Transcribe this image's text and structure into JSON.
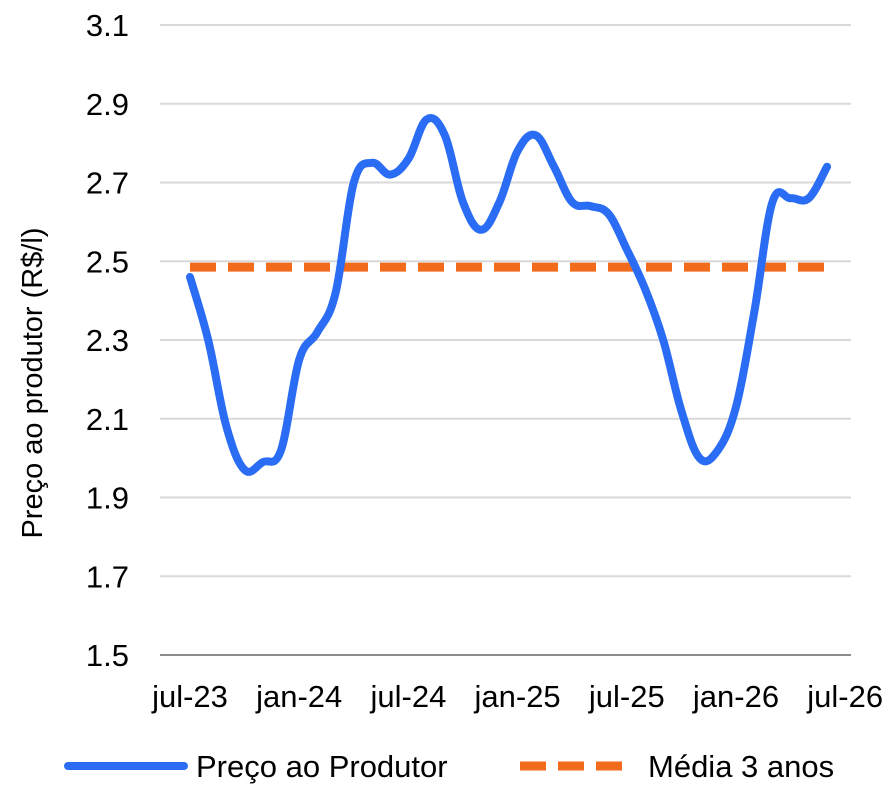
{
  "chart_data": {
    "type": "line",
    "title": "",
    "xlabel": "",
    "ylabel": "Preço ao produtor (R$/l)",
    "ylim": [
      1.5,
      3.1
    ],
    "yticks": [
      "1.5",
      "1.7",
      "1.9",
      "2.1",
      "2.3",
      "2.5",
      "2.7",
      "2.9",
      "3.1"
    ],
    "xtick_labels": [
      "jul-23",
      "jan-24",
      "jul-24",
      "jan-25",
      "jul-25",
      "jan-26",
      "jul-26"
    ],
    "grid": true,
    "legend_position": "bottom",
    "x": [
      "jul-23",
      "ago-23",
      "set-23",
      "out-23",
      "nov-23",
      "dez-23",
      "jan-24",
      "fev-24",
      "mar-24",
      "abr-24",
      "mai-24",
      "jun-24",
      "jul-24",
      "ago-24",
      "set-24",
      "out-24",
      "nov-24",
      "dez-24",
      "jan-25",
      "fev-25",
      "mar-25",
      "abr-25",
      "mai-25",
      "jun-25",
      "jul-25",
      "ago-25",
      "set-25",
      "out-25",
      "nov-25",
      "dez-25",
      "jan-26",
      "fev-26",
      "mar-26",
      "abr-26",
      "mai-26",
      "jun-26"
    ],
    "series": [
      {
        "name": "Preço ao Produtor",
        "color": "#2b6cf4",
        "style": "solid",
        "values": [
          2.46,
          2.3,
          2.08,
          1.97,
          1.99,
          2.02,
          2.25,
          2.32,
          2.42,
          2.7,
          2.75,
          2.72,
          2.76,
          2.86,
          2.82,
          2.65,
          2.58,
          2.65,
          2.78,
          2.82,
          2.74,
          2.65,
          2.64,
          2.62,
          2.53,
          2.43,
          2.3,
          2.12,
          2.0,
          2.02,
          2.13,
          2.37,
          2.65,
          2.66,
          2.66,
          2.74
        ]
      },
      {
        "name": "Média 3 anos",
        "color": "#f26a1b",
        "style": "dashed",
        "values": [
          2.485,
          2.485,
          2.485,
          2.485,
          2.485,
          2.485,
          2.485,
          2.485,
          2.485,
          2.485,
          2.485,
          2.485,
          2.485,
          2.485,
          2.485,
          2.485,
          2.485,
          2.485,
          2.485,
          2.485,
          2.485,
          2.485,
          2.485,
          2.485,
          2.485,
          2.485,
          2.485,
          2.485,
          2.485,
          2.485,
          2.485,
          2.485,
          2.485,
          2.485,
          2.485,
          2.485
        ]
      }
    ]
  },
  "colors": {
    "grid": "#d9d9d9",
    "axis": "#8c8c8c",
    "text": "#000000"
  }
}
